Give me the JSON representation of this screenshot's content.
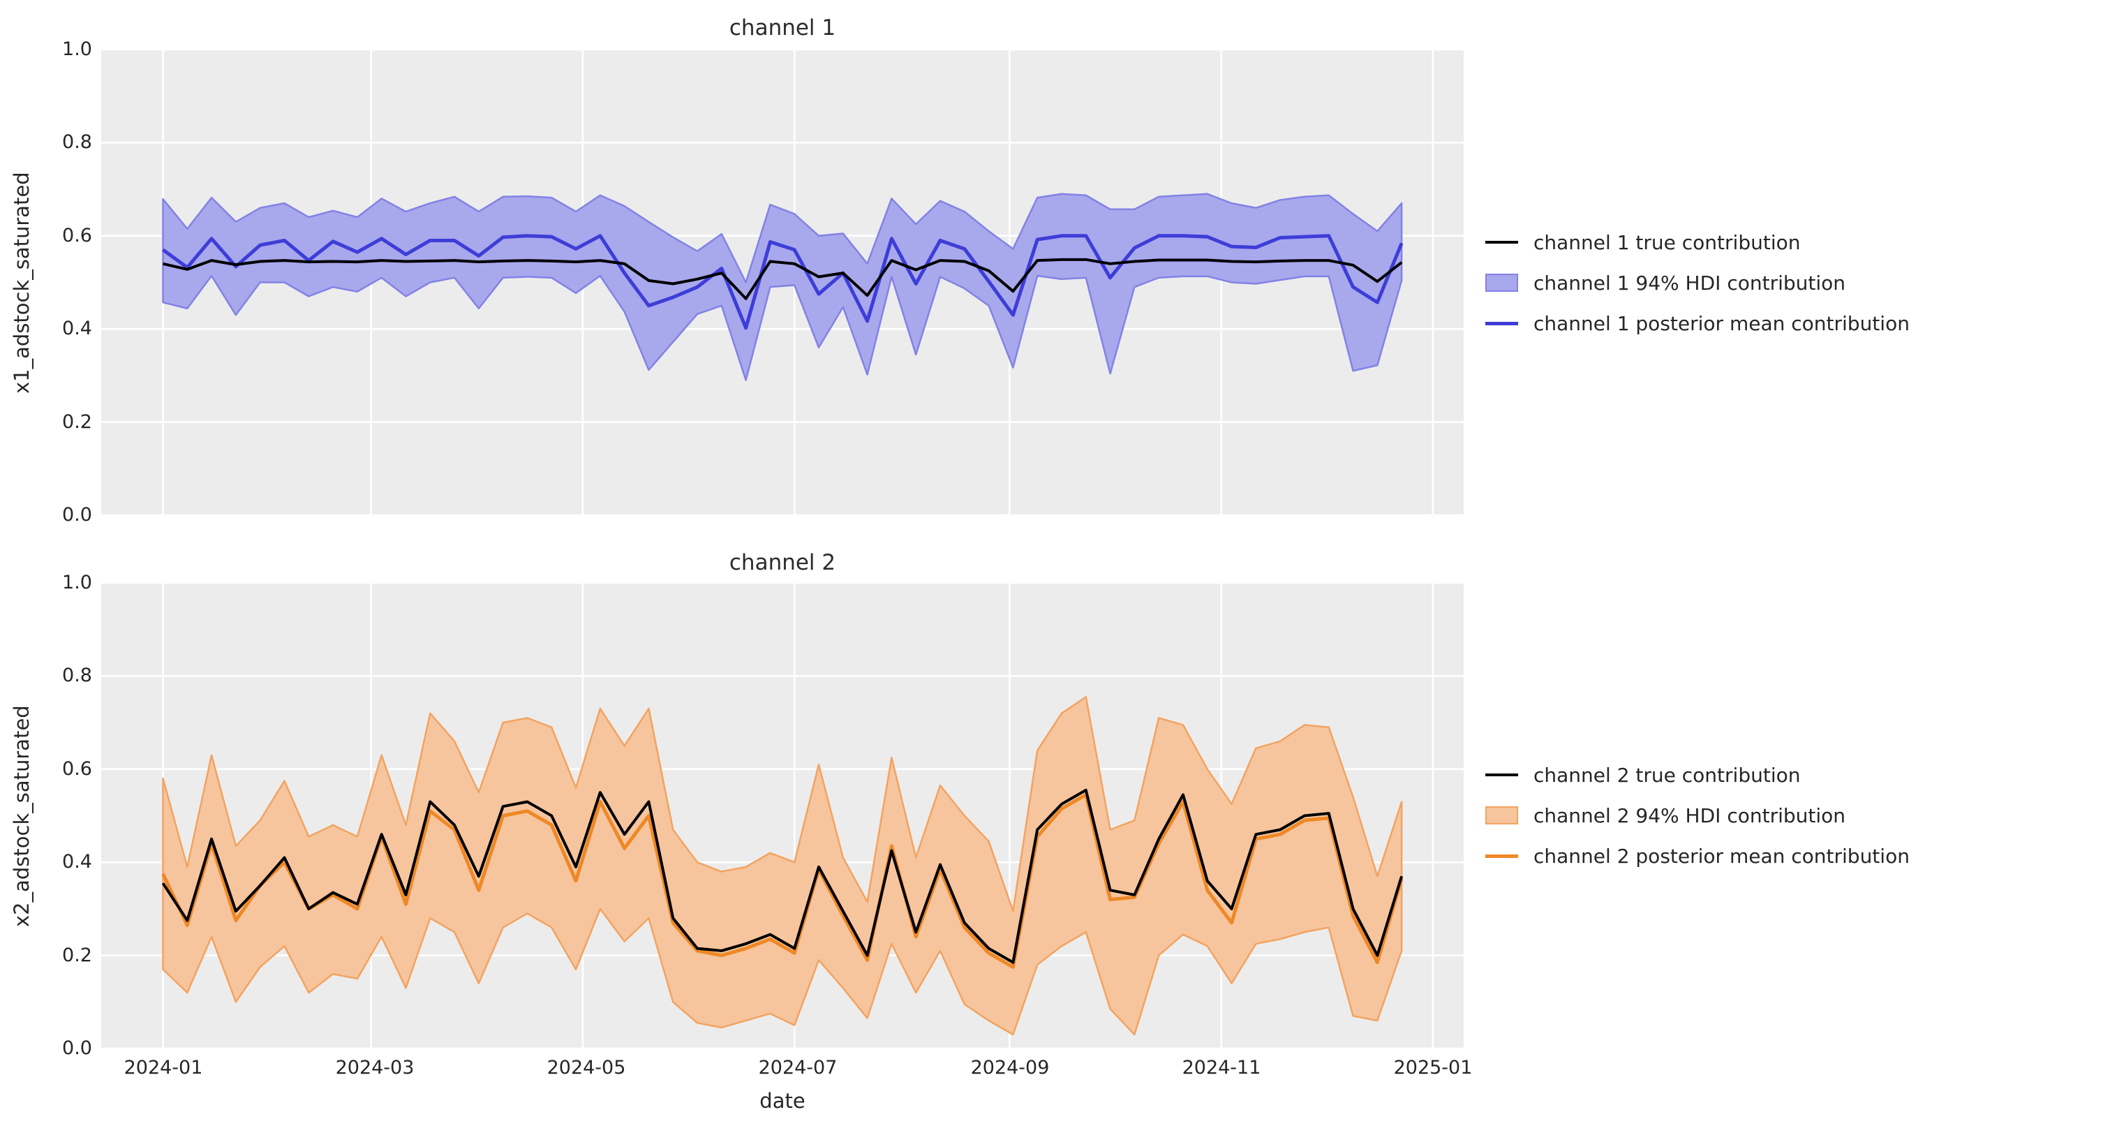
{
  "figure": {
    "background": "#ffffff",
    "panel_background": "#ececec",
    "grid_color": "#ffffff",
    "text_color": "#262626"
  },
  "chart_data": [
    {
      "type": "line",
      "title": "channel 1",
      "ylabel": "x1_adstock_saturated",
      "xlabel": "",
      "ylim": [
        0.0,
        1.0
      ],
      "grid": true,
      "legend_position": "right of axes",
      "yticks": [
        "1.0",
        "0.8",
        "0.6",
        "0.4",
        "0.2",
        "0.0"
      ],
      "month_gridlines": [
        "2024-01-01",
        "2024-03-01",
        "2024-05-01",
        "2024-07-01",
        "2024-09-01",
        "2024-11-01",
        "2025-01-01"
      ],
      "x": [
        "2024-01-01",
        "2024-01-08",
        "2024-01-15",
        "2024-01-22",
        "2024-01-29",
        "2024-02-05",
        "2024-02-12",
        "2024-02-19",
        "2024-02-26",
        "2024-03-04",
        "2024-03-11",
        "2024-03-18",
        "2024-03-25",
        "2024-04-01",
        "2024-04-08",
        "2024-04-15",
        "2024-04-22",
        "2024-04-29",
        "2024-05-06",
        "2024-05-13",
        "2024-05-20",
        "2024-05-27",
        "2024-06-03",
        "2024-06-10",
        "2024-06-17",
        "2024-06-24",
        "2024-07-01",
        "2024-07-08",
        "2024-07-15",
        "2024-07-22",
        "2024-07-29",
        "2024-08-05",
        "2024-08-12",
        "2024-08-19",
        "2024-08-26",
        "2024-09-02",
        "2024-09-09",
        "2024-09-16",
        "2024-09-23",
        "2024-09-30",
        "2024-10-07",
        "2024-10-14",
        "2024-10-21",
        "2024-10-28",
        "2024-11-04",
        "2024-11-11",
        "2024-11-18",
        "2024-11-25",
        "2024-12-02",
        "2024-12-09",
        "2024-12-16",
        "2024-12-23"
      ],
      "series": [
        {
          "name": "channel 1 true contribution",
          "type": "line",
          "color": "#000000",
          "values": [
            0.54,
            0.528,
            0.547,
            0.538,
            0.545,
            0.547,
            0.544,
            0.545,
            0.544,
            0.547,
            0.545,
            0.546,
            0.547,
            0.544,
            0.546,
            0.547,
            0.546,
            0.544,
            0.547,
            0.54,
            0.504,
            0.497,
            0.507,
            0.52,
            0.465,
            0.545,
            0.54,
            0.512,
            0.52,
            0.472,
            0.547,
            0.527,
            0.547,
            0.545,
            0.525,
            0.481,
            0.547,
            0.549,
            0.549,
            0.54,
            0.545,
            0.548,
            0.548,
            0.548,
            0.545,
            0.544,
            0.546,
            0.547,
            0.547,
            0.537,
            0.502,
            0.543
          ]
        },
        {
          "name": "channel 1 94% HDI contribution",
          "type": "band",
          "fill": "#a8a8ec",
          "edge": "#8282e6",
          "lower": [
            0.457,
            0.444,
            0.514,
            0.43,
            0.5,
            0.5,
            0.47,
            0.49,
            0.48,
            0.51,
            0.47,
            0.5,
            0.51,
            0.444,
            0.51,
            0.512,
            0.51,
            0.477,
            0.514,
            0.437,
            0.312,
            0.372,
            0.432,
            0.45,
            0.29,
            0.49,
            0.494,
            0.36,
            0.447,
            0.302,
            0.512,
            0.345,
            0.512,
            0.487,
            0.45,
            0.317,
            0.514,
            0.507,
            0.51,
            0.304,
            0.49,
            0.51,
            0.513,
            0.513,
            0.5,
            0.497,
            0.505,
            0.513,
            0.513,
            0.31,
            0.322,
            0.504
          ],
          "upper": [
            0.679,
            0.615,
            0.682,
            0.63,
            0.66,
            0.67,
            0.64,
            0.654,
            0.64,
            0.68,
            0.652,
            0.67,
            0.684,
            0.652,
            0.684,
            0.685,
            0.682,
            0.652,
            0.687,
            0.664,
            0.63,
            0.597,
            0.567,
            0.604,
            0.5,
            0.667,
            0.647,
            0.6,
            0.605,
            0.54,
            0.68,
            0.625,
            0.675,
            0.652,
            0.61,
            0.572,
            0.682,
            0.69,
            0.687,
            0.657,
            0.657,
            0.684,
            0.687,
            0.69,
            0.67,
            0.66,
            0.677,
            0.684,
            0.687,
            0.647,
            0.61,
            0.67
          ]
        },
        {
          "name": "channel 1 posterior mean contribution",
          "type": "line",
          "color": "#3d3dd8",
          "values": [
            0.57,
            0.532,
            0.594,
            0.534,
            0.58,
            0.59,
            0.547,
            0.588,
            0.565,
            0.594,
            0.56,
            0.59,
            0.59,
            0.557,
            0.597,
            0.6,
            0.598,
            0.572,
            0.6,
            0.52,
            0.45,
            0.468,
            0.49,
            0.53,
            0.402,
            0.587,
            0.57,
            0.475,
            0.52,
            0.417,
            0.594,
            0.497,
            0.59,
            0.572,
            0.502,
            0.43,
            0.592,
            0.6,
            0.6,
            0.51,
            0.574,
            0.6,
            0.6,
            0.598,
            0.577,
            0.575,
            0.596,
            0.598,
            0.6,
            0.49,
            0.457,
            0.584
          ]
        }
      ]
    },
    {
      "type": "line",
      "title": "channel 2",
      "ylabel": "x2_adstock_saturated",
      "xlabel": "date",
      "ylim": [
        0.0,
        1.0
      ],
      "grid": true,
      "legend_position": "right of axes",
      "yticks": [
        "1.0",
        "0.8",
        "0.6",
        "0.4",
        "0.2",
        "0.0"
      ],
      "xticks": [
        "2024-01",
        "2024-03",
        "2024-05",
        "2024-07",
        "2024-09",
        "2024-11",
        "2025-01"
      ],
      "month_gridlines": [
        "2024-01-01",
        "2024-03-01",
        "2024-05-01",
        "2024-07-01",
        "2024-09-01",
        "2024-11-01",
        "2025-01-01"
      ],
      "x": [
        "2024-01-01",
        "2024-01-08",
        "2024-01-15",
        "2024-01-22",
        "2024-01-29",
        "2024-02-05",
        "2024-02-12",
        "2024-02-19",
        "2024-02-26",
        "2024-03-04",
        "2024-03-11",
        "2024-03-18",
        "2024-03-25",
        "2024-04-01",
        "2024-04-08",
        "2024-04-15",
        "2024-04-22",
        "2024-04-29",
        "2024-05-06",
        "2024-05-13",
        "2024-05-20",
        "2024-05-27",
        "2024-06-03",
        "2024-06-10",
        "2024-06-17",
        "2024-06-24",
        "2024-07-01",
        "2024-07-08",
        "2024-07-15",
        "2024-07-22",
        "2024-07-29",
        "2024-08-05",
        "2024-08-12",
        "2024-08-19",
        "2024-08-26",
        "2024-09-02",
        "2024-09-09",
        "2024-09-16",
        "2024-09-23",
        "2024-09-30",
        "2024-10-07",
        "2024-10-14",
        "2024-10-21",
        "2024-10-28",
        "2024-11-04",
        "2024-11-11",
        "2024-11-18",
        "2024-11-25",
        "2024-12-02",
        "2024-12-09",
        "2024-12-16",
        "2024-12-23"
      ],
      "series": [
        {
          "name": "channel 2 true contribution",
          "type": "line",
          "color": "#000000",
          "values": [
            0.355,
            0.275,
            0.45,
            0.295,
            0.35,
            0.41,
            0.3,
            0.335,
            0.31,
            0.46,
            0.33,
            0.53,
            0.48,
            0.37,
            0.52,
            0.53,
            0.5,
            0.39,
            0.55,
            0.46,
            0.53,
            0.28,
            0.215,
            0.21,
            0.225,
            0.245,
            0.215,
            0.39,
            0.295,
            0.2,
            0.425,
            0.25,
            0.395,
            0.27,
            0.215,
            0.185,
            0.47,
            0.525,
            0.555,
            0.34,
            0.33,
            0.45,
            0.545,
            0.36,
            0.3,
            0.46,
            0.47,
            0.5,
            0.505,
            0.3,
            0.2,
            0.37
          ]
        },
        {
          "name": "channel 2 94% HDI contribution",
          "type": "band",
          "fill": "#f6c59e",
          "edge": "#f2a360",
          "lower": [
            0.17,
            0.12,
            0.24,
            0.1,
            0.175,
            0.22,
            0.12,
            0.16,
            0.15,
            0.24,
            0.13,
            0.28,
            0.25,
            0.14,
            0.26,
            0.29,
            0.26,
            0.17,
            0.3,
            0.23,
            0.28,
            0.1,
            0.055,
            0.045,
            0.06,
            0.075,
            0.05,
            0.19,
            0.13,
            0.065,
            0.225,
            0.12,
            0.21,
            0.095,
            0.06,
            0.03,
            0.18,
            0.22,
            0.25,
            0.085,
            0.03,
            0.2,
            0.245,
            0.22,
            0.14,
            0.225,
            0.235,
            0.25,
            0.26,
            0.07,
            0.06,
            0.21
          ],
          "upper": [
            0.58,
            0.39,
            0.63,
            0.435,
            0.49,
            0.575,
            0.455,
            0.48,
            0.455,
            0.63,
            0.48,
            0.72,
            0.66,
            0.55,
            0.7,
            0.71,
            0.69,
            0.56,
            0.73,
            0.65,
            0.73,
            0.47,
            0.4,
            0.38,
            0.39,
            0.42,
            0.4,
            0.61,
            0.41,
            0.315,
            0.625,
            0.41,
            0.565,
            0.5,
            0.445,
            0.295,
            0.64,
            0.72,
            0.755,
            0.47,
            0.49,
            0.71,
            0.695,
            0.6,
            0.525,
            0.645,
            0.66,
            0.695,
            0.69,
            0.54,
            0.37,
            0.53
          ]
        },
        {
          "name": "channel 2 posterior mean contribution",
          "type": "line",
          "color": "#ee8826",
          "values": [
            0.375,
            0.265,
            0.44,
            0.275,
            0.35,
            0.4,
            0.3,
            0.33,
            0.3,
            0.455,
            0.31,
            0.51,
            0.47,
            0.34,
            0.5,
            0.51,
            0.48,
            0.36,
            0.53,
            0.43,
            0.5,
            0.27,
            0.21,
            0.2,
            0.215,
            0.235,
            0.205,
            0.385,
            0.285,
            0.19,
            0.435,
            0.24,
            0.385,
            0.26,
            0.205,
            0.175,
            0.455,
            0.515,
            0.545,
            0.32,
            0.325,
            0.44,
            0.53,
            0.34,
            0.27,
            0.45,
            0.46,
            0.49,
            0.495,
            0.285,
            0.185,
            0.365
          ]
        }
      ]
    }
  ]
}
